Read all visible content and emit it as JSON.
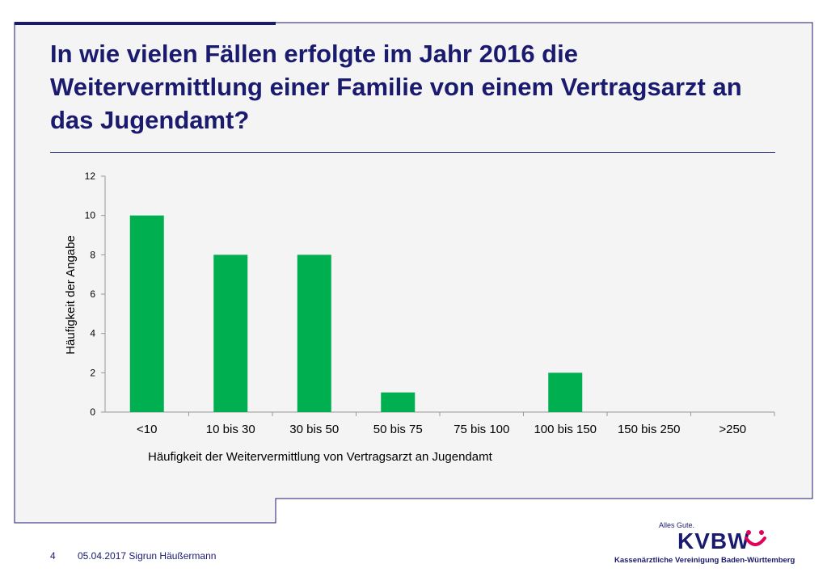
{
  "slide": {
    "title": "In wie vielen Fällen erfolgte im Jahr 2016 die Weitervermittlung einer Familie von einem Vertragsarzt an das Jugendamt?"
  },
  "footer": {
    "page_number": "4",
    "date_author": "05.04.2017  Sigrun Häußermann"
  },
  "logo": {
    "tagline": "Alles Gute.",
    "wordmark": "KVBW",
    "subtitle": "Kassenärztliche Vereinigung Baden-Württemberg"
  },
  "colors": {
    "navy": "#1a1a6e",
    "bar": "#00b050",
    "panel": "#f4f4f4"
  },
  "chart_data": {
    "type": "bar",
    "title": "",
    "xlabel": "Häufigkeit der Weitervermittlung von Vertragsarzt an Jugendamt",
    "ylabel": "Häufigkeit der Angabe",
    "categories": [
      "<10",
      "10 bis 30",
      "30 bis 50",
      "50 bis 75",
      "75 bis 100",
      "100 bis 150",
      "150 bis 250",
      ">250"
    ],
    "values": [
      10,
      8,
      8,
      1,
      0,
      2,
      0,
      0
    ],
    "ylim": [
      0,
      12
    ],
    "yticks": [
      "0",
      "2",
      "4",
      "6",
      "8",
      "10",
      "12"
    ],
    "grid": false,
    "legend": "none"
  }
}
